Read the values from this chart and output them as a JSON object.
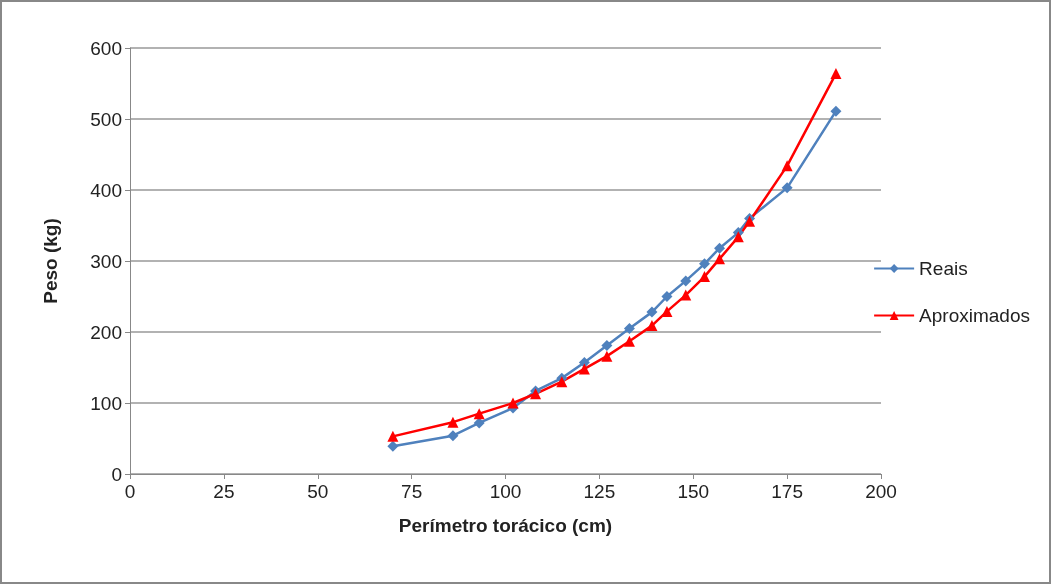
{
  "chart_data": {
    "type": "line",
    "xlabel": "Perímetro torácico (cm)",
    "ylabel": "Peso (kg)",
    "x": [
      70,
      86,
      93,
      102,
      108,
      115,
      121,
      127,
      133,
      139,
      143,
      148,
      153,
      157,
      162,
      165,
      175,
      188
    ],
    "series": [
      {
        "name": "Reais",
        "color": "#4f81bd",
        "marker": "diamond",
        "values": [
          39,
          54,
          72,
          93,
          117,
          135,
          157,
          181,
          205,
          228,
          250,
          272,
          296,
          318,
          340,
          360,
          403,
          511
        ]
      },
      {
        "name": "Aproximados",
        "color": "#ff0000",
        "marker": "triangle",
        "values": [
          53,
          73,
          85,
          100,
          113,
          130,
          148,
          166,
          187,
          209,
          229,
          252,
          278,
          303,
          334,
          356,
          434,
          564
        ]
      }
    ],
    "xlim": [
      0,
      200
    ],
    "xticks": [
      0,
      25,
      50,
      75,
      100,
      125,
      150,
      175,
      200
    ],
    "ylim": [
      0,
      600
    ],
    "yticks": [
      0,
      100,
      200,
      300,
      400,
      500,
      600
    ],
    "grid": "y",
    "legend": "right",
    "line_style": "solid"
  }
}
